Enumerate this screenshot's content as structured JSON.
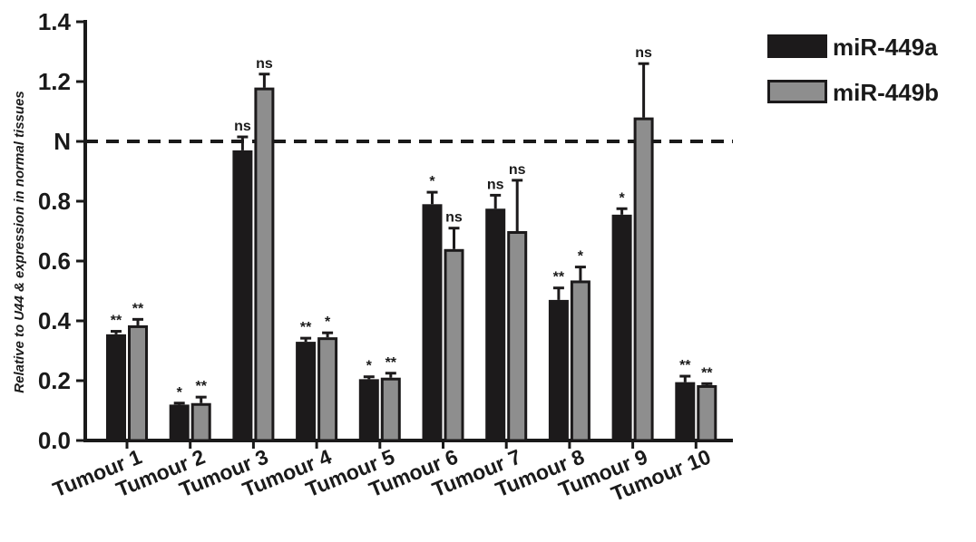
{
  "chart_data": {
    "type": "bar",
    "ylabel": "Relative to U44 & expression in normal tissues",
    "ylim": [
      0,
      1.4
    ],
    "yticks": [
      {
        "value": 0.0,
        "label": "0.0"
      },
      {
        "value": 0.2,
        "label": "0.2"
      },
      {
        "value": 0.4,
        "label": "0.4"
      },
      {
        "value": 0.6,
        "label": "0.6"
      },
      {
        "value": 0.8,
        "label": "0.8"
      },
      {
        "value": 1.0,
        "label": "N"
      },
      {
        "value": 1.2,
        "label": "1.2"
      },
      {
        "value": 1.4,
        "label": "1.4"
      }
    ],
    "reference_line": {
      "value": 1.0,
      "style": "dashed"
    },
    "legend_position": "top-right",
    "grid": false,
    "categories": [
      "Tumour 1",
      "Tumour 2",
      "Tumour 3",
      "Tumour 4",
      "Tumour 5",
      "Tumour 6",
      "Tumour 7",
      "Tumour 8",
      "Tumour 9",
      "Tumour 10"
    ],
    "series": [
      {
        "name": "miR-449a",
        "color": "#1c1a1b",
        "values": [
          0.355,
          0.12,
          0.97,
          0.33,
          0.205,
          0.79,
          0.775,
          0.47,
          0.755,
          0.195
        ],
        "errors": [
          0.01,
          0.005,
          0.045,
          0.012,
          0.008,
          0.04,
          0.045,
          0.04,
          0.02,
          0.02
        ],
        "significance": [
          "**",
          "*",
          "ns",
          "**",
          "*",
          "*",
          "ns",
          "**",
          "*",
          "**"
        ]
      },
      {
        "name": "miR-449b",
        "color": "#8e8e8e",
        "values": [
          0.385,
          0.125,
          1.18,
          0.345,
          0.21,
          0.64,
          0.7,
          0.535,
          1.08,
          0.185
        ],
        "errors": [
          0.02,
          0.02,
          0.045,
          0.015,
          0.015,
          0.07,
          0.17,
          0.045,
          0.18,
          0.005
        ],
        "significance": [
          "**",
          "**",
          "ns",
          "*",
          "**",
          "ns",
          "ns",
          "*",
          "ns",
          "**"
        ]
      }
    ]
  }
}
